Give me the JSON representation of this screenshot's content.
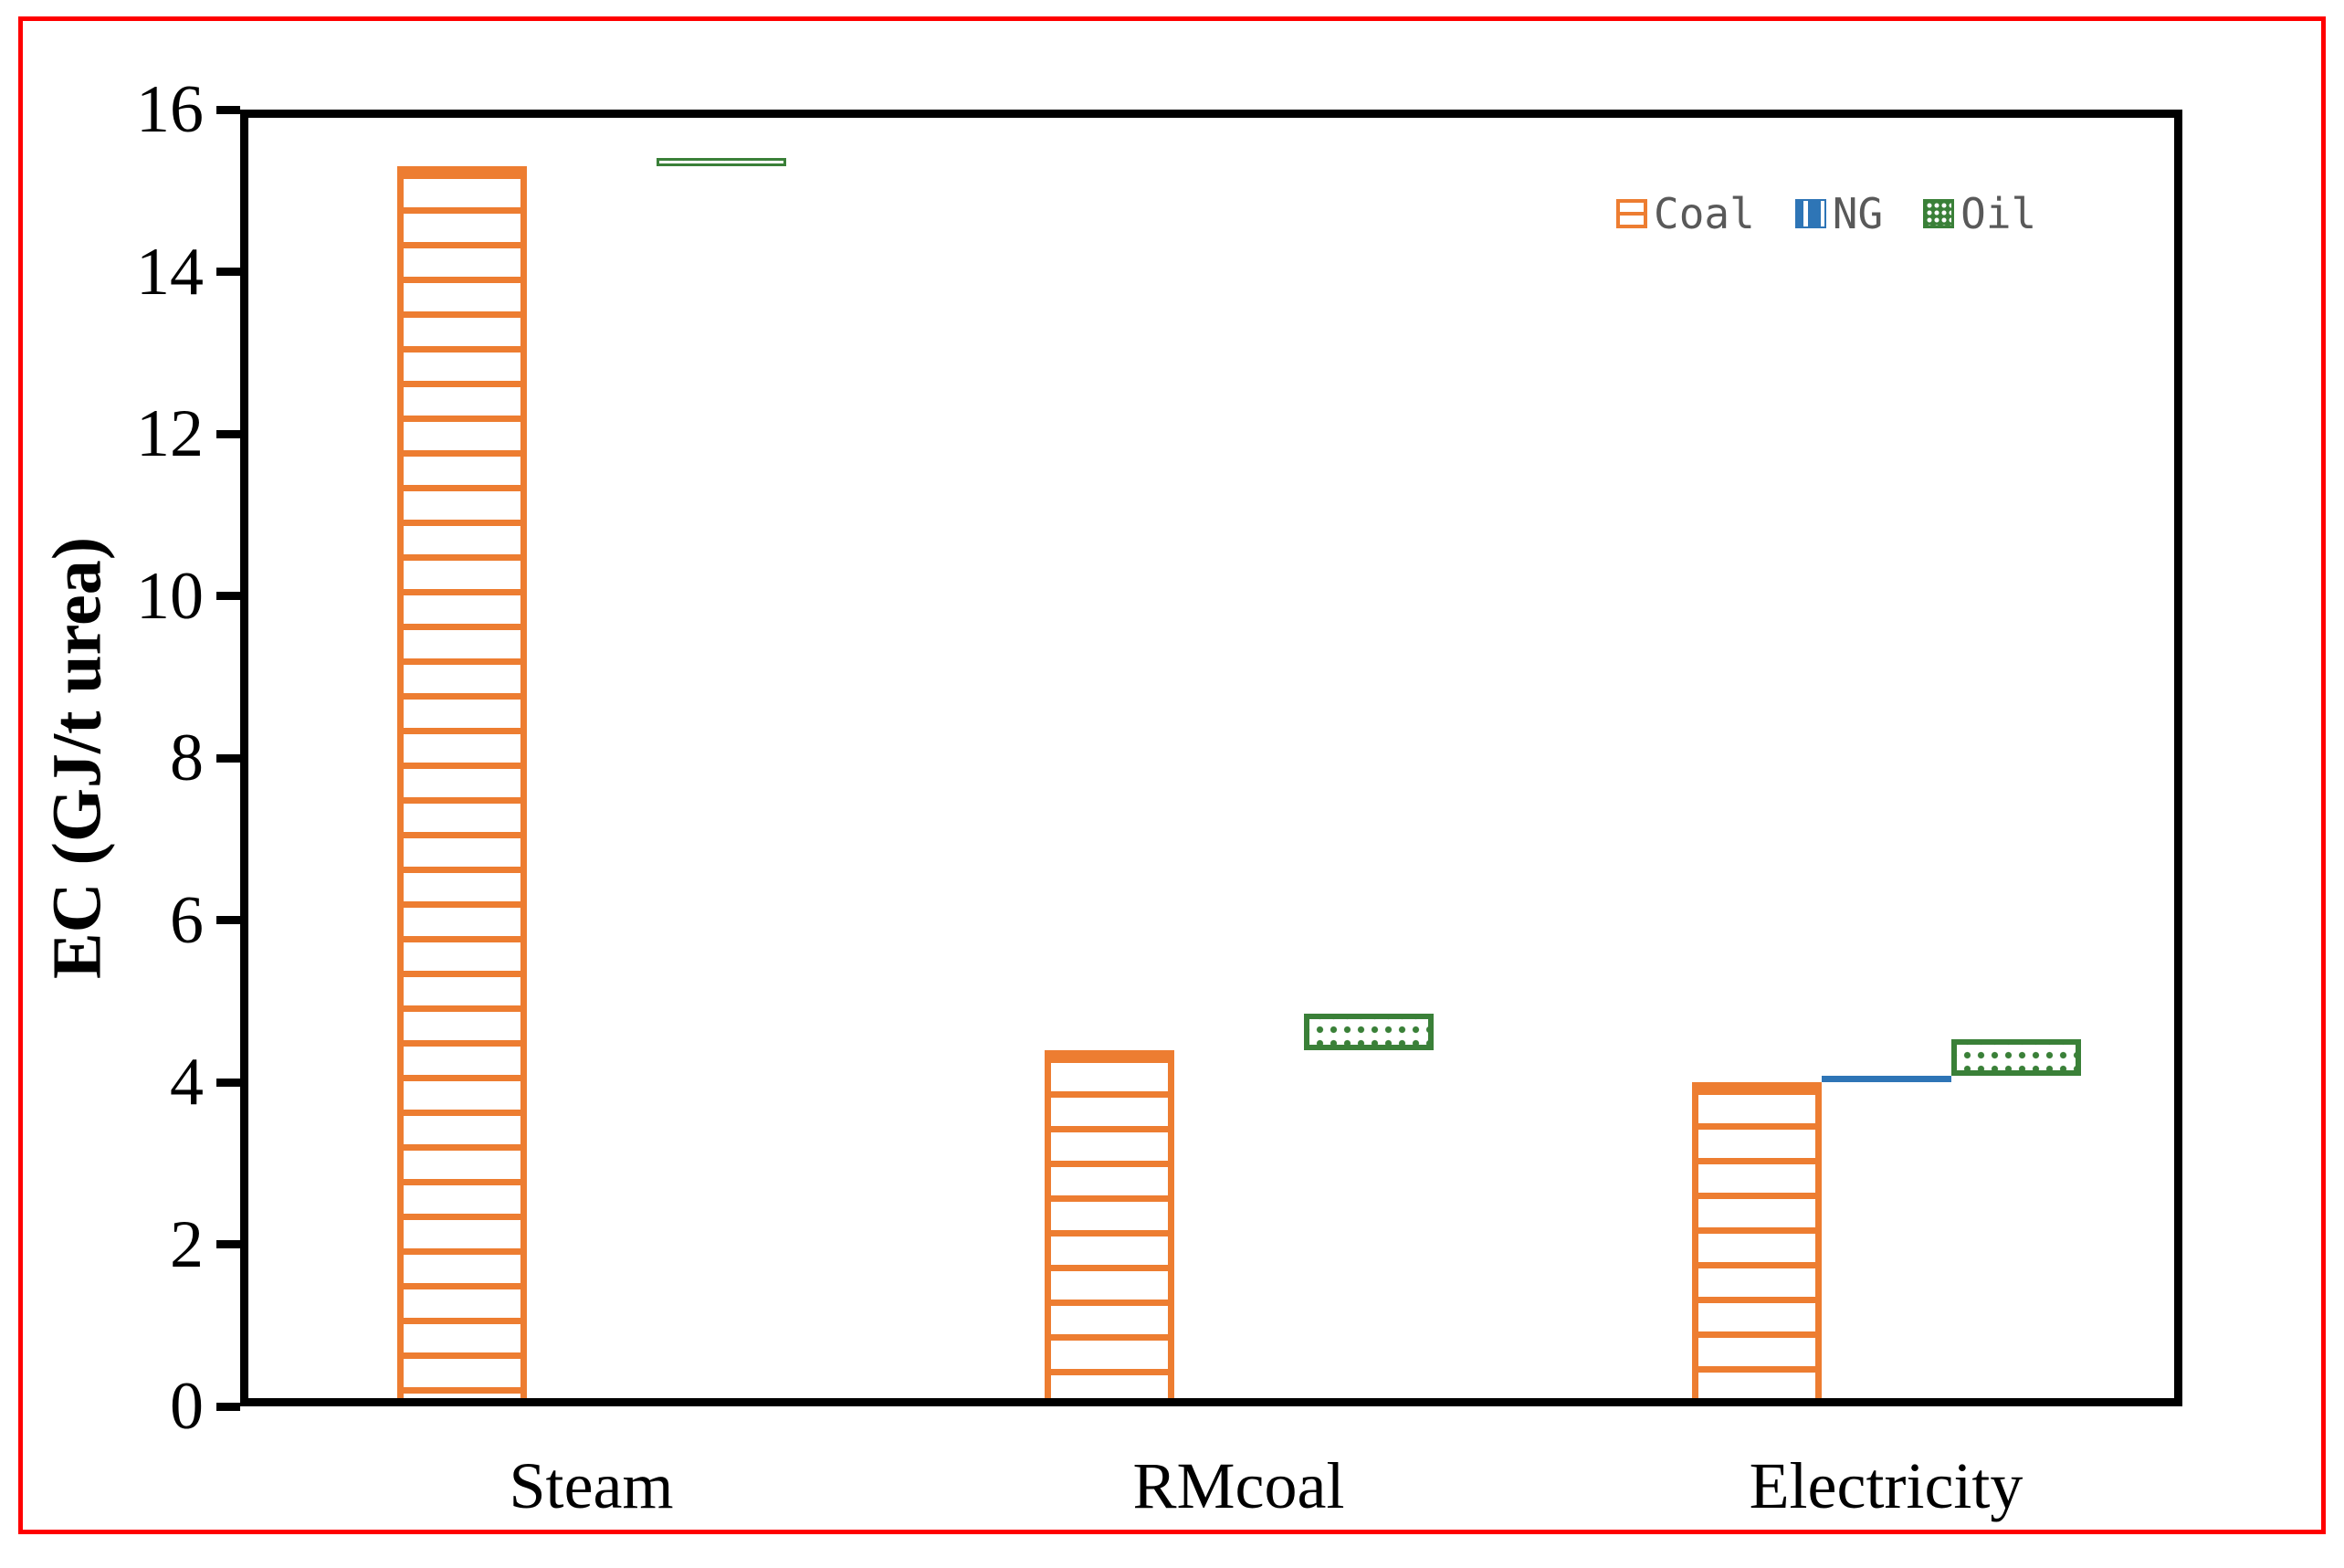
{
  "figure": {
    "outer_border_color": "#FF0000",
    "background": "#FFFFFF"
  },
  "chart_data": {
    "type": "bar",
    "variant": "staggered-stacked: each series drawn in its own adjacent column slot, starting at the running total of the previous series",
    "categories": [
      "Steam",
      "RMcoal",
      "Electricity"
    ],
    "series": [
      {
        "name": "Coal",
        "values": [
          15.3,
          4.4,
          4.0
        ],
        "color": "#ED7D31",
        "pattern": "horizontal-stripes"
      },
      {
        "name": "NG",
        "values": [
          0,
          0,
          0.08
        ],
        "color": "#2E75B6",
        "pattern": "vertical-stripes"
      },
      {
        "name": "Oil",
        "values": [
          0.1,
          0.45,
          0.45
        ],
        "color": "#3A8038",
        "pattern": "dots"
      }
    ],
    "title": "",
    "xlabel": "",
    "ylabel": "EC (GJ/t urea)",
    "ylim": [
      0,
      16
    ],
    "yticks": [
      0,
      2,
      4,
      6,
      8,
      10,
      12,
      14,
      16
    ],
    "grid": false,
    "legend_position": "top-right-inside",
    "legend_text_color": "#595959",
    "axis_color": "#000000"
  }
}
